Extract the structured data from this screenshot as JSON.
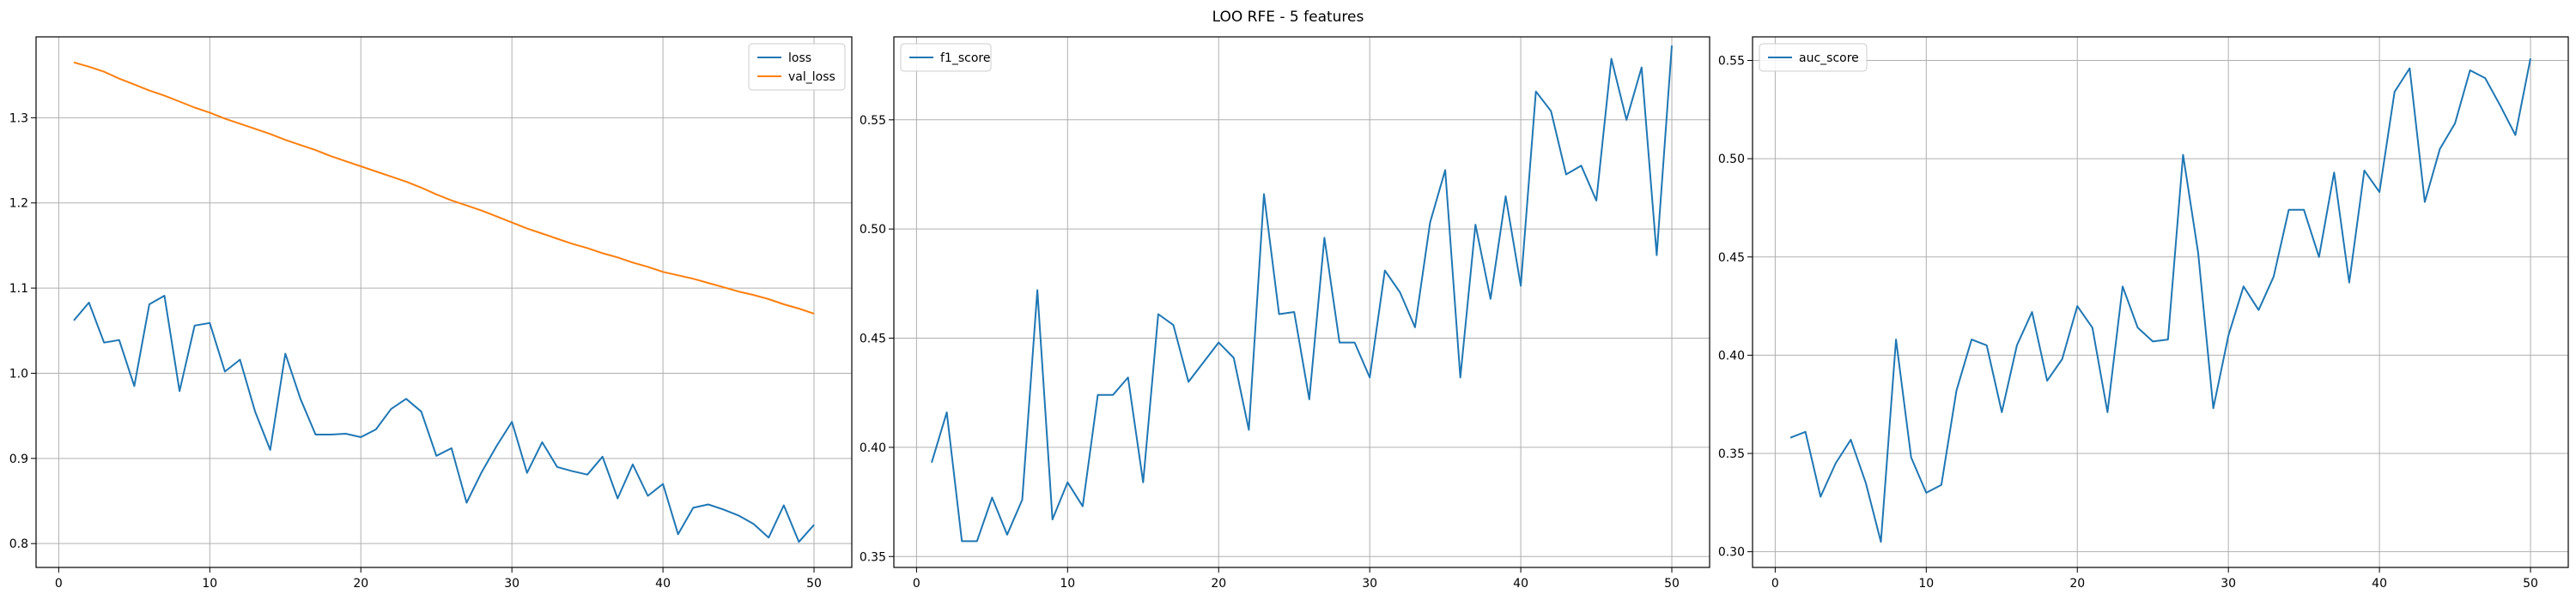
{
  "figure": {
    "suptitle": "LOO RFE - 5 features"
  },
  "colors": {
    "blue": "#1f77b4",
    "orange": "#ff7f0e",
    "grid": "#b0b0b0",
    "axis": "#000000"
  },
  "chart_data": [
    {
      "type": "line",
      "grid": true,
      "legend_loc": "upper right",
      "xlim": [
        -1.5,
        52.5
      ],
      "ylim": [
        0.772,
        1.395
      ],
      "xticks": [
        0,
        10,
        20,
        30,
        40,
        50
      ],
      "yticks": [
        0.8,
        0.9,
        1.0,
        1.1,
        1.2,
        1.3
      ],
      "ytick_labels": [
        "0.8",
        "0.9",
        "1.0",
        "1.1",
        "1.2",
        "1.3"
      ],
      "x": [
        1,
        2,
        3,
        4,
        5,
        6,
        7,
        8,
        9,
        10,
        11,
        12,
        13,
        14,
        15,
        16,
        17,
        18,
        19,
        20,
        21,
        22,
        23,
        24,
        25,
        26,
        27,
        28,
        29,
        30,
        31,
        32,
        33,
        34,
        35,
        36,
        37,
        38,
        39,
        40,
        41,
        42,
        43,
        44,
        45,
        46,
        47,
        48,
        49,
        50
      ],
      "series": [
        {
          "name": "loss",
          "color": "#1f77b4",
          "values": [
            1.062,
            1.083,
            1.036,
            1.039,
            0.985,
            1.081,
            1.091,
            0.979,
            1.056,
            1.059,
            1.002,
            1.016,
            0.955,
            0.91,
            1.023,
            0.97,
            0.928,
            0.928,
            0.929,
            0.925,
            0.934,
            0.958,
            0.97,
            0.955,
            0.903,
            0.912,
            0.848,
            0.884,
            0.915,
            0.943,
            0.883,
            0.919,
            0.89,
            0.885,
            0.881,
            0.902,
            0.853,
            0.893,
            0.856,
            0.87,
            0.811,
            0.842,
            0.846,
            0.84,
            0.833,
            0.823,
            0.807,
            0.845,
            0.802,
            0.822
          ]
        },
        {
          "name": "val_loss",
          "color": "#ff7f0e",
          "values": [
            1.365,
            1.36,
            1.354,
            1.346,
            1.339,
            1.332,
            1.326,
            1.319,
            1.312,
            1.306,
            1.299,
            1.293,
            1.287,
            1.281,
            1.274,
            1.268,
            1.262,
            1.255,
            1.249,
            1.243,
            1.237,
            1.231,
            1.225,
            1.218,
            1.21,
            1.203,
            1.197,
            1.191,
            1.184,
            1.177,
            1.17,
            1.164,
            1.158,
            1.152,
            1.147,
            1.141,
            1.136,
            1.13,
            1.125,
            1.119,
            1.115,
            1.111,
            1.106,
            1.101,
            1.096,
            1.092,
            1.087,
            1.081,
            1.076,
            1.07
          ]
        }
      ]
    },
    {
      "type": "line",
      "grid": true,
      "legend_loc": "upper left",
      "xlim": [
        -1.5,
        52.5
      ],
      "ylim": [
        0.345,
        0.588
      ],
      "xticks": [
        0,
        10,
        20,
        30,
        40,
        50
      ],
      "yticks": [
        0.35,
        0.4,
        0.45,
        0.5,
        0.55
      ],
      "ytick_labels": [
        "0.35",
        "0.40",
        "0.45",
        "0.50",
        "0.55"
      ],
      "x": [
        1,
        2,
        3,
        4,
        5,
        6,
        7,
        8,
        9,
        10,
        11,
        12,
        13,
        14,
        15,
        16,
        17,
        18,
        19,
        20,
        21,
        22,
        23,
        24,
        25,
        26,
        27,
        28,
        29,
        30,
        31,
        32,
        33,
        34,
        35,
        36,
        37,
        38,
        39,
        40,
        41,
        42,
        43,
        44,
        45,
        46,
        47,
        48,
        49,
        50
      ],
      "series": [
        {
          "name": "f1_score",
          "color": "#1f77b4",
          "values": [
            0.393,
            0.416,
            0.357,
            0.357,
            0.377,
            0.36,
            0.376,
            0.472,
            0.367,
            0.384,
            0.373,
            0.424,
            0.424,
            0.432,
            0.384,
            0.461,
            0.456,
            0.43,
            0.439,
            0.448,
            0.441,
            0.408,
            0.516,
            0.461,
            0.462,
            0.422,
            0.496,
            0.448,
            0.448,
            0.432,
            0.481,
            0.471,
            0.455,
            0.503,
            0.527,
            0.432,
            0.502,
            0.468,
            0.515,
            0.474,
            0.563,
            0.554,
            0.525,
            0.529,
            0.513,
            0.578,
            0.55,
            0.574,
            0.488,
            0.584
          ]
        }
      ]
    },
    {
      "type": "line",
      "grid": true,
      "legend_loc": "upper left",
      "xlim": [
        -1.5,
        52.5
      ],
      "ylim": [
        0.292,
        0.562
      ],
      "xticks": [
        0,
        10,
        20,
        30,
        40,
        50
      ],
      "yticks": [
        0.3,
        0.35,
        0.4,
        0.45,
        0.5,
        0.55
      ],
      "ytick_labels": [
        "0.30",
        "0.35",
        "0.40",
        "0.45",
        "0.50",
        "0.55"
      ],
      "x": [
        1,
        2,
        3,
        4,
        5,
        6,
        7,
        8,
        9,
        10,
        11,
        12,
        13,
        14,
        15,
        16,
        17,
        18,
        19,
        20,
        21,
        22,
        23,
        24,
        25,
        26,
        27,
        28,
        29,
        30,
        31,
        32,
        33,
        34,
        35,
        36,
        37,
        38,
        39,
        40,
        41,
        42,
        43,
        44,
        45,
        46,
        47,
        48,
        49,
        50
      ],
      "series": [
        {
          "name": "auc_score",
          "color": "#1f77b4",
          "values": [
            0.358,
            0.361,
            0.328,
            0.345,
            0.357,
            0.335,
            0.305,
            0.408,
            0.348,
            0.33,
            0.334,
            0.382,
            0.408,
            0.405,
            0.371,
            0.405,
            0.422,
            0.387,
            0.398,
            0.425,
            0.414,
            0.371,
            0.435,
            0.414,
            0.407,
            0.408,
            0.502,
            0.452,
            0.373,
            0.41,
            0.435,
            0.423,
            0.44,
            0.474,
            0.474,
            0.45,
            0.493,
            0.437,
            0.494,
            0.483,
            0.534,
            0.546,
            0.478,
            0.505,
            0.518,
            0.545,
            0.541,
            0.527,
            0.512,
            0.551
          ]
        }
      ]
    }
  ]
}
